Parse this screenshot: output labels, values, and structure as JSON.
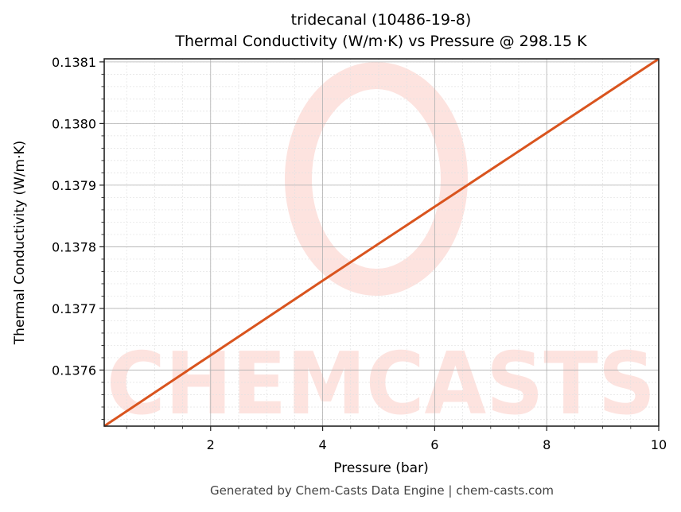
{
  "chart_data": {
    "type": "line",
    "title": "tridecanal (10486-19-8)",
    "subtitle": "Thermal Conductivity (W/m·K) vs Pressure @ 298.15 K",
    "xlabel": "Pressure (bar)",
    "ylabel": "Thermal Conductivity (W/m·K)",
    "xlim": [
      0.1,
      10
    ],
    "ylim": [
      0.137509,
      0.138105
    ],
    "x_ticks": [
      2,
      4,
      6,
      8,
      10
    ],
    "x_tick_labels": [
      "2",
      "4",
      "6",
      "8",
      "10"
    ],
    "y_ticks": [
      0.1376,
      0.1377,
      0.1378,
      0.1379,
      0.138,
      0.1381
    ],
    "y_tick_labels": [
      "0.1376",
      "0.1377",
      "0.1378",
      "0.1379",
      "0.1380",
      "0.1381"
    ],
    "grid": true,
    "legend": null,
    "series": [
      {
        "name": "Thermal Conductivity",
        "color": "#d9541e",
        "x": [
          0.1,
          2,
          4,
          6,
          8,
          10
        ],
        "y": [
          0.137509,
          0.137624,
          0.137745,
          0.137865,
          0.137985,
          0.138105
        ]
      }
    ]
  },
  "watermark": {
    "text": "CHEMCASTS",
    "color": "#fde3df"
  },
  "footer": {
    "text": "Generated by Chem-Casts Data Engine | chem-casts.com"
  }
}
